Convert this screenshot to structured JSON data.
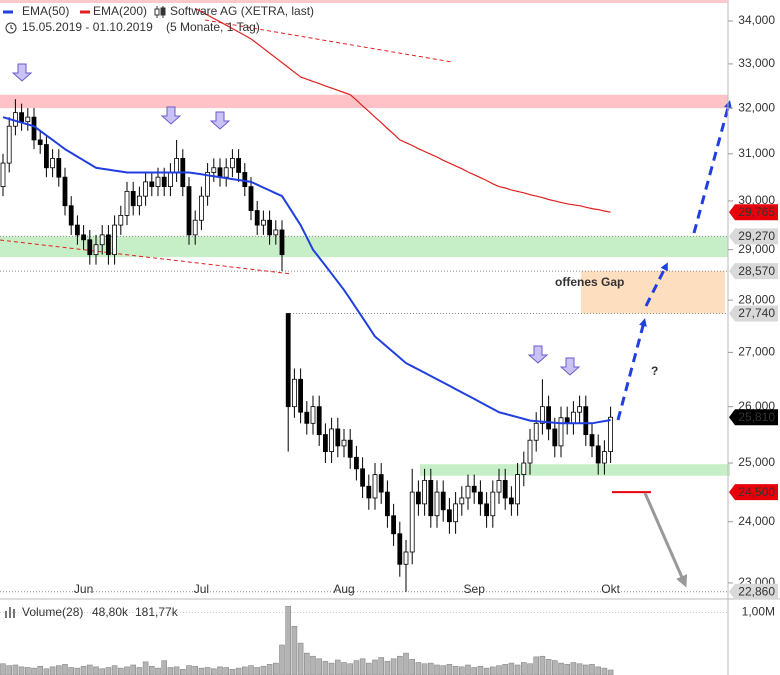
{
  "chart_data": [
    {
      "type": "candlestick",
      "title": "Software AG (XETRA, last)",
      "subtitle": "15.05.2019 - 01.10.2019",
      "period": "(5 Monate, 1 Tag)",
      "categories": [
        null,
        null,
        null,
        null,
        null,
        null,
        null,
        null,
        null,
        null,
        null,
        null,
        null,
        "Jun",
        null,
        null,
        null,
        null,
        null,
        null,
        null,
        null,
        null,
        null,
        null,
        null,
        null,
        null,
        null,
        null,
        null,
        null,
        "Jul",
        null,
        null,
        null,
        null,
        null,
        null,
        null,
        null,
        null,
        null,
        null,
        null,
        null,
        null,
        null,
        null,
        null,
        null,
        null,
        null,
        null,
        null,
        "Aug",
        null,
        null,
        null,
        null,
        null,
        null,
        null,
        null,
        null,
        null,
        null,
        null,
        null,
        null,
        null,
        null,
        null,
        null,
        null,
        null,
        "Sep",
        null,
        null,
        null,
        null,
        null,
        null,
        null,
        null,
        null,
        null,
        null,
        null,
        null,
        null,
        null,
        null,
        null,
        null,
        null,
        null,
        null,
        "Okt"
      ],
      "series": [
        {
          "name": "Software AG (XETRA, last)",
          "up_color": "#ffffff",
          "down_color": "#000000",
          "open": [
            30300,
            30800,
            31600,
            31900,
            31700,
            31800,
            31300,
            31200,
            30700,
            30900,
            30500,
            29900,
            29500,
            29300,
            29200,
            28900,
            29100,
            29300,
            28900,
            29500,
            29700,
            30200,
            29900,
            30100,
            30400,
            30300,
            30500,
            30300,
            30600,
            30900,
            30300,
            29300,
            29600,
            30100,
            30600,
            30700,
            30500,
            30700,
            30900,
            30600,
            30300,
            29800,
            29500,
            29600,
            29300,
            29400,
            27740,
            26000,
            26500,
            25900,
            25700,
            26000,
            25500,
            25200,
            25600,
            25300,
            25400,
            25100,
            24900,
            24600,
            24400,
            24800,
            24500,
            24100,
            23800,
            23300,
            23500,
            24500,
            24300,
            24700,
            24100,
            24500,
            24200,
            24000,
            24300,
            24400,
            24600,
            24500,
            24300,
            24100,
            24500,
            24700,
            24400,
            24300,
            24800,
            25000,
            25400,
            25700,
            26000,
            25600,
            25300,
            25800,
            25700,
            25900,
            26000,
            25500,
            25300,
            25000,
            25200
          ],
          "high": [
            31000,
            31800,
            32200,
            32100,
            32000,
            32000,
            31500,
            31400,
            31100,
            31100,
            30700,
            30100,
            29700,
            29500,
            29400,
            29300,
            29500,
            29500,
            29700,
            29900,
            30400,
            30400,
            30300,
            30600,
            30600,
            30700,
            30700,
            30800,
            31300,
            31100,
            30500,
            29800,
            30300,
            30800,
            30900,
            30900,
            30900,
            31100,
            31100,
            30800,
            30500,
            30000,
            29800,
            29800,
            29600,
            29600,
            27740,
            26700,
            26700,
            26100,
            26200,
            26200,
            25700,
            25800,
            25800,
            25600,
            25600,
            25300,
            25100,
            24800,
            25000,
            25000,
            24700,
            24300,
            24000,
            23700,
            24900,
            24700,
            24900,
            24900,
            24700,
            24700,
            24400,
            24500,
            24600,
            24800,
            24800,
            24700,
            24500,
            24700,
            24900,
            24900,
            24600,
            25000,
            25200,
            25600,
            25900,
            26500,
            26200,
            25800,
            26000,
            26000,
            26100,
            26200,
            26200,
            25700,
            25500,
            25400,
            26000
          ],
          "low": [
            30100,
            30600,
            31400,
            31500,
            31500,
            31100,
            31000,
            30500,
            30500,
            30300,
            29700,
            29300,
            29100,
            29000,
            28700,
            28700,
            28900,
            28700,
            28700,
            29300,
            29500,
            29700,
            29700,
            29900,
            30100,
            30100,
            30100,
            30100,
            30400,
            30100,
            29100,
            29100,
            29400,
            29900,
            30400,
            30300,
            30300,
            30500,
            30400,
            30100,
            29600,
            29300,
            29300,
            29100,
            29100,
            28570,
            25200,
            25800,
            25700,
            25500,
            25500,
            25300,
            25000,
            25000,
            25100,
            25100,
            24900,
            24700,
            24400,
            24200,
            24200,
            24300,
            23900,
            23600,
            23100,
            22860,
            23300,
            24100,
            24100,
            23900,
            23900,
            24000,
            23800,
            23800,
            24100,
            24200,
            24300,
            24100,
            23900,
            23900,
            24300,
            24200,
            24100,
            24100,
            24600,
            24800,
            25200,
            25500,
            25400,
            25100,
            25100,
            25500,
            25500,
            25700,
            25300,
            25100,
            24800,
            24800,
            25000
          ],
          "close": [
            30800,
            31600,
            31900,
            31700,
            31800,
            31300,
            31200,
            30700,
            30900,
            30500,
            29900,
            29500,
            29300,
            29200,
            28900,
            29100,
            29300,
            28900,
            29500,
            29700,
            30200,
            29900,
            30100,
            30400,
            30300,
            30500,
            30300,
            30600,
            30900,
            30300,
            29300,
            29600,
            30100,
            30600,
            30700,
            30500,
            30700,
            30900,
            30600,
            30300,
            29800,
            29500,
            29600,
            29300,
            29400,
            28900,
            26000,
            26500,
            25900,
            25700,
            26000,
            25500,
            25200,
            25600,
            25300,
            25400,
            25100,
            24900,
            24600,
            24400,
            24800,
            24500,
            24100,
            23800,
            23300,
            23500,
            24500,
            24300,
            24700,
            24100,
            24500,
            24200,
            24000,
            24300,
            24400,
            24600,
            24500,
            24300,
            24100,
            24500,
            24700,
            24400,
            24300,
            24800,
            25000,
            25400,
            25700,
            26000,
            25600,
            25300,
            25800,
            25700,
            25900,
            26000,
            25500,
            25300,
            25000,
            25200,
            25810
          ]
        },
        {
          "name": "EMA(50)",
          "color": "#1f3fe0",
          "values": [
            31800,
            31760,
            31720,
            31680,
            31640,
            31600,
            31500,
            31400,
            31300,
            31200,
            31100,
            31020,
            30940,
            30860,
            30780,
            30700,
            30680,
            30660,
            30640,
            30620,
            30600,
            30600,
            30600,
            30600,
            30600,
            30600,
            30600,
            30600,
            30600,
            30600,
            30600,
            30580,
            30560,
            30540,
            30520,
            30500,
            30480,
            30460,
            30440,
            30420,
            30400,
            30340,
            30280,
            30220,
            30160,
            30100,
            29900,
            29700,
            29500,
            29250,
            29000,
            28840,
            28680,
            28520,
            28360,
            28200,
            28020,
            27840,
            27660,
            27480,
            27300,
            27200,
            27100,
            27000,
            26900,
            26800,
            26740,
            26680,
            26620,
            26560,
            26500,
            26440,
            26380,
            26320,
            26260,
            26200,
            26140,
            26080,
            26020,
            25960,
            25900,
            25870,
            25840,
            25810,
            25780,
            25750,
            25740,
            25730,
            25720,
            25710,
            25700,
            25700,
            25700,
            25700,
            25700,
            25700,
            25720,
            25740,
            25760
          ]
        },
        {
          "name": "EMA(200)",
          "color": "#e02020",
          "values": [
            null,
            null,
            null,
            null,
            null,
            null,
            null,
            null,
            null,
            null,
            null,
            null,
            null,
            null,
            null,
            null,
            null,
            null,
            null,
            null,
            null,
            null,
            null,
            null,
            null,
            null,
            null,
            null,
            null,
            null,
            null,
            34300,
            34220,
            34140,
            34060,
            33980,
            33900,
            33820,
            33740,
            33660,
            33580,
            33470,
            33360,
            33250,
            33140,
            33030,
            32920,
            32810,
            32700,
            32650,
            32600,
            32550,
            32500,
            32450,
            32400,
            32350,
            32300,
            32180,
            32050,
            31930,
            31800,
            31680,
            31550,
            31430,
            31300,
            31240,
            31180,
            31110,
            31050,
            30990,
            30930,
            30860,
            30800,
            30740,
            30680,
            30610,
            30550,
            30490,
            30430,
            30360,
            30300,
            30270,
            30230,
            30200,
            30170,
            30130,
            30100,
            30070,
            30030,
            30000,
            29970,
            29940,
            29920,
            29900,
            29870,
            29840,
            29820,
            29790,
            29765
          ]
        }
      ],
      "log": true,
      "ylim": [
        22760,
        34500
      ],
      "yticks": [
        {
          "value": 23000,
          "label": "23,000"
        },
        {
          "value": 24000,
          "label": "24,000"
        },
        {
          "value": 25000,
          "label": "25,000"
        },
        {
          "value": 26000,
          "label": "26,000"
        },
        {
          "value": 27000,
          "label": "27,000"
        },
        {
          "value": 28000,
          "label": "28,000"
        },
        {
          "value": 29000,
          "label": "29,000"
        },
        {
          "value": 30000,
          "label": "30,000"
        },
        {
          "value": 31000,
          "label": "31,000"
        },
        {
          "value": 32000,
          "label": "32,000"
        },
        {
          "value": 33000,
          "label": "33,000"
        },
        {
          "value": 34000,
          "label": "34,000"
        }
      ],
      "levels": [
        {
          "value": 29765,
          "label": "29,765",
          "color": "#e8000b"
        },
        {
          "value": 29270,
          "label": "29,270",
          "color": "#d9d9d9"
        },
        {
          "value": 28570,
          "label": "28,570",
          "color": "#d9d9d9"
        },
        {
          "value": 27740,
          "label": "27,740",
          "color": "#d9d9d9"
        },
        {
          "value": 25810,
          "label": "25,810",
          "color": "#000000"
        },
        {
          "value": 24500,
          "label": "24,500",
          "color": "#e8000b"
        },
        {
          "value": 22860,
          "label": "22,860",
          "color": "#d9d9d9"
        }
      ],
      "zones": [
        {
          "from": 32000,
          "to": 32300,
          "color": "#ffb8bd"
        },
        {
          "from": 28850,
          "to": 29270,
          "color": "#bdecbd"
        },
        {
          "from": 24780,
          "to": 24980,
          "color": "#bdecbd"
        },
        {
          "from": 27740,
          "to": 28570,
          "color": "#fdd8b4"
        }
      ],
      "annotations": [
        {
          "text": "offenes Gap",
          "color": "#e8701a"
        },
        {
          "text": "?",
          "color": "#1f3fe0"
        }
      ]
    },
    {
      "type": "bar",
      "title": "Volume(28)",
      "color": "#b4b4b4",
      "annotations": [
        {
          "text": "48,80k",
          "color": "#555555"
        },
        {
          "text": "181,77k",
          "color": "#e6b800"
        }
      ],
      "values": [
        180000,
        150000,
        160000,
        130000,
        120000,
        110000,
        140000,
        100000,
        130000,
        150000,
        170000,
        120000,
        110000,
        140000,
        160000,
        130000,
        100000,
        120000,
        150000,
        110000,
        130000,
        160000,
        120000,
        210000,
        140000,
        110000,
        230000,
        120000,
        130000,
        90000,
        150000,
        140000,
        110000,
        120000,
        100000,
        130000,
        120000,
        90000,
        110000,
        130000,
        150000,
        120000,
        140000,
        170000,
        190000,
        480000,
        1100000,
        780000,
        510000,
        350000,
        300000,
        260000,
        220000,
        190000,
        240000,
        200000,
        180000,
        230000,
        260000,
        190000,
        240000,
        280000,
        220000,
        260000,
        300000,
        350000,
        250000,
        200000,
        180000,
        190000,
        160000,
        150000,
        170000,
        140000,
        130000,
        160000,
        120000,
        140000,
        110000,
        130000,
        150000,
        170000,
        190000,
        160000,
        200000,
        180000,
        290000,
        300000,
        250000,
        230000,
        190000,
        170000,
        200000,
        180000,
        160000,
        170000,
        130000,
        110000,
        80000
      ],
      "ylim": [
        0,
        1200000
      ],
      "yticks": [
        {
          "value": 1000000,
          "label": "1,00M"
        }
      ]
    }
  ]
}
